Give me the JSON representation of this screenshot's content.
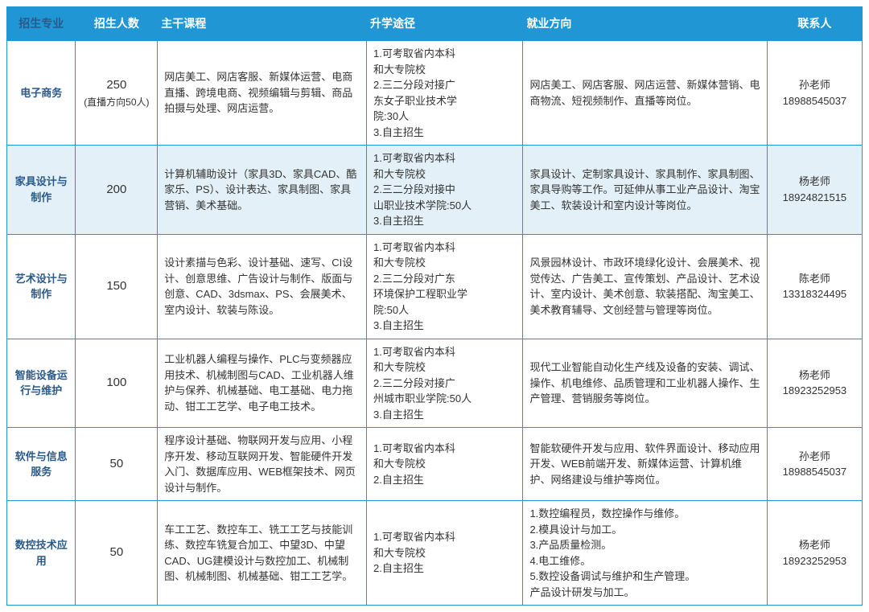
{
  "headers": {
    "major": "招生专业",
    "enroll": "招生人数",
    "courses": "主干课程",
    "path": "升学途径",
    "career": "就业方向",
    "contact": "联系人"
  },
  "rows": [
    {
      "major": "电子商务",
      "enroll_main": "250",
      "enroll_sub": "(直播方向50人)",
      "courses": "网店美工、网店客服、新媒体运营、电商直播、跨境电商、视频编辑与剪辑、商品拍摄与处理、网店运营。",
      "path": "1.可考取省内本科\n  和大专院校\n2.三二分段对接广\n东女子职业技术学\n院:30人\n3.自主招生",
      "career": "网店美工、网店客服、网店运营、新媒体营销、电商物流、短视频制作、直播等岗位。",
      "contact_name": "孙老师",
      "contact_phone": "18988545037",
      "highlight": false
    },
    {
      "major": "家具设计与制作",
      "enroll_main": "200",
      "enroll_sub": "",
      "courses": "计算机辅助设计（家具3D、家具CAD、酷家乐、PS）、设计表达、家具制图、家具营销、美术基础。",
      "path": "1.可考取省内本科\n  和大专院校\n2.三二分段对接中\n山职业技术学院:50人\n3.自主招生",
      "career": "家具设计、定制家具设计、家具制作、家具制图、家具导购等工作。可延伸从事工业产品设计、淘宝美工、软装设计和室内设计等岗位。",
      "contact_name": "杨老师",
      "contact_phone": "18924821515",
      "highlight": true
    },
    {
      "major": "艺术设计与制作",
      "enroll_main": "150",
      "enroll_sub": "",
      "courses": "设计素描与色彩、设计基础、速写、CI设计、创意思维、广告设计与制作、版面与创意、CAD、3dsmax、PS、会展美术、室内设计、软装与陈设。",
      "path": "1.可考取省内本科\n  和大专院校\n2.三二分段对广东\n环境保护工程职业学\n院:50人\n3.自主招生",
      "career": "风景园林设计、市政环境绿化设计、会展美术、视觉传达、广告美工、宣传策划、产品设计、艺术设计、室内设计、美术创意、软装搭配、淘宝美工、美术教育辅导、文创经营与管理等岗位。",
      "contact_name": "陈老师",
      "contact_phone": "13318324495",
      "highlight": false
    },
    {
      "major": "智能设备运行与维护",
      "enroll_main": "100",
      "enroll_sub": "",
      "courses": "工业机器人编程与操作、PLC与变频器应用技术、机械制图与CAD、工业机器人维护与保养、机械基础、电工基础、电力拖动、钳工工艺学、电子电工技术。",
      "path": "1.可考取省内本科\n  和大专院校\n2.三二分段对接广\n州城市职业学院:50人\n3.自主招生",
      "career": "现代工业智能自动化生产线及设备的安装、调试、操作、机电维修、品质管理和工业机器人操作、生产管理、营销服务等岗位。",
      "contact_name": "杨老师",
      "contact_phone": "18923252953",
      "highlight": false
    },
    {
      "major": "软件与信息服务",
      "enroll_main": "50",
      "enroll_sub": "",
      "courses": "程序设计基础、物联网开发与应用、小程序开发、移动互联网开发、智能硬件开发入门、数据库应用、WEB框架技术、网页设计与制作。",
      "path": "1.可考取省内本科\n  和大专院校\n2.自主招生",
      "career": "智能软硬件开发与应用、软件界面设计、移动应用开发、WEB前端开发、新媒体运营、计算机维护、网络建设与维护等岗位。",
      "contact_name": "孙老师",
      "contact_phone": "18988545037",
      "highlight": false
    },
    {
      "major": "数控技术应用",
      "enroll_main": "50",
      "enroll_sub": "",
      "courses": "车工工艺、数控车工、铣工工艺与技能训练、数控车铣复合加工、中望3D、中望CAD、UG建模设计与数控加工、机械制图、机械制图、机械基础、钳工工艺学。",
      "path": "1.可考取省内本科\n  和大专院校\n2.自主招生",
      "career": "1.数控编程员，数控操作与维修。\n2.模具设计与加工。\n3.产品质量检测。\n4.电工维修。\n5.数控设备调试与维护和生产管理。\n产品设计研发与加工。",
      "contact_name": "杨老师",
      "contact_phone": "18923252953",
      "highlight": false
    }
  ]
}
